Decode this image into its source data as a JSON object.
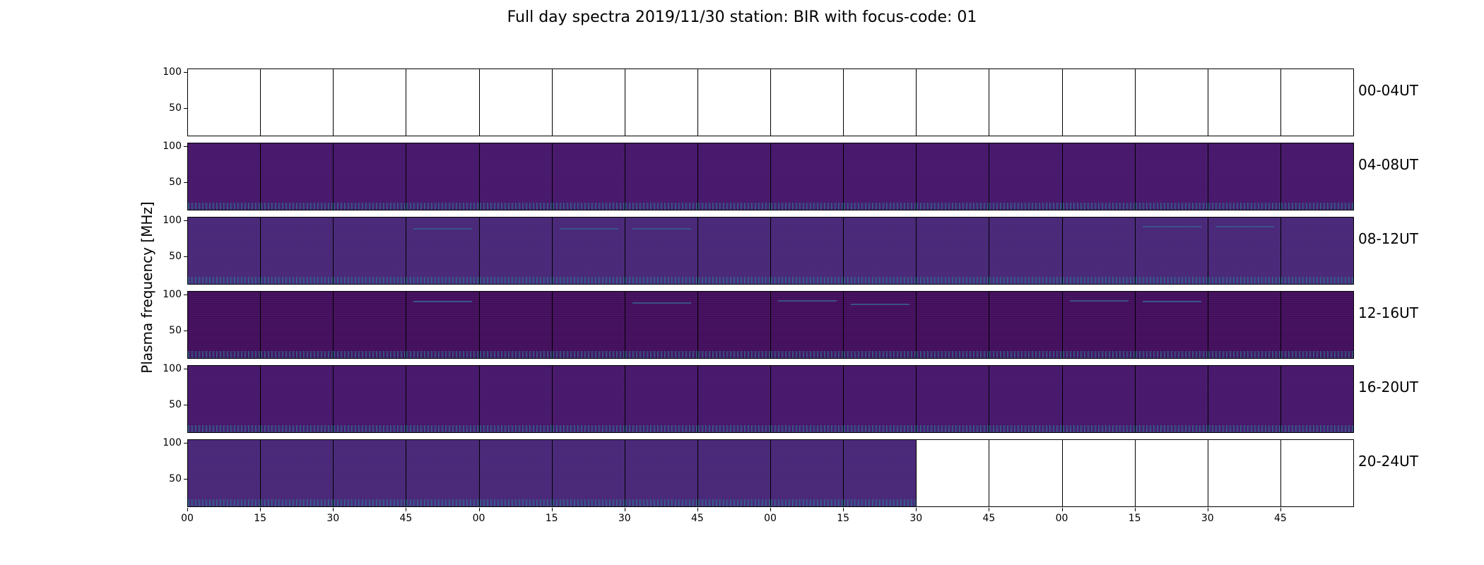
{
  "title": "Full day spectra 2019/11/30 station: BIR with focus-code: 01",
  "ylabel": "Plasma frequency [MHz]",
  "colors": {
    "empty_panel": "#ffffff",
    "spectrum_background": "#46115e",
    "burst_line": "#3b528b",
    "low_freq_noise": "#238c8c"
  },
  "chart_data": {
    "type": "heatmap",
    "title": "Full day spectra 2019/11/30 station: BIR with focus-code: 01",
    "xlabel": "",
    "ylabel": "Plasma frequency [MHz]",
    "yticks": [
      50,
      100
    ],
    "ylim": [
      10,
      105
    ],
    "xticks": [
      "00",
      "15",
      "30",
      "45",
      "00",
      "15",
      "30",
      "45",
      "00",
      "15",
      "30",
      "45",
      "00",
      "15",
      "30",
      "45"
    ],
    "panels_per_row": 16,
    "panel_minutes": 15,
    "rows": [
      {
        "label": "00-04UT",
        "data_present": [
          false,
          false,
          false,
          false,
          false,
          false,
          false,
          false,
          false,
          false,
          false,
          false,
          false,
          false,
          false,
          false
        ]
      },
      {
        "label": "04-08UT",
        "data_present": [
          true,
          true,
          true,
          true,
          true,
          true,
          true,
          true,
          true,
          true,
          true,
          true,
          true,
          true,
          true,
          true
        ]
      },
      {
        "label": "08-12UT",
        "data_present": [
          true,
          true,
          true,
          true,
          true,
          true,
          true,
          true,
          true,
          true,
          true,
          true,
          true,
          true,
          true,
          true
        ]
      },
      {
        "label": "12-16UT",
        "data_present": [
          true,
          true,
          true,
          true,
          true,
          true,
          true,
          true,
          true,
          true,
          true,
          true,
          true,
          true,
          true,
          true
        ]
      },
      {
        "label": "16-20UT",
        "data_present": [
          true,
          true,
          true,
          true,
          true,
          true,
          true,
          true,
          true,
          true,
          true,
          true,
          true,
          true,
          true,
          true
        ]
      },
      {
        "label": "20-24UT",
        "data_present": [
          true,
          true,
          true,
          true,
          true,
          true,
          true,
          true,
          true,
          true,
          false,
          false,
          false,
          false,
          false,
          false
        ]
      }
    ],
    "grid": false,
    "colormap": "viridis"
  }
}
